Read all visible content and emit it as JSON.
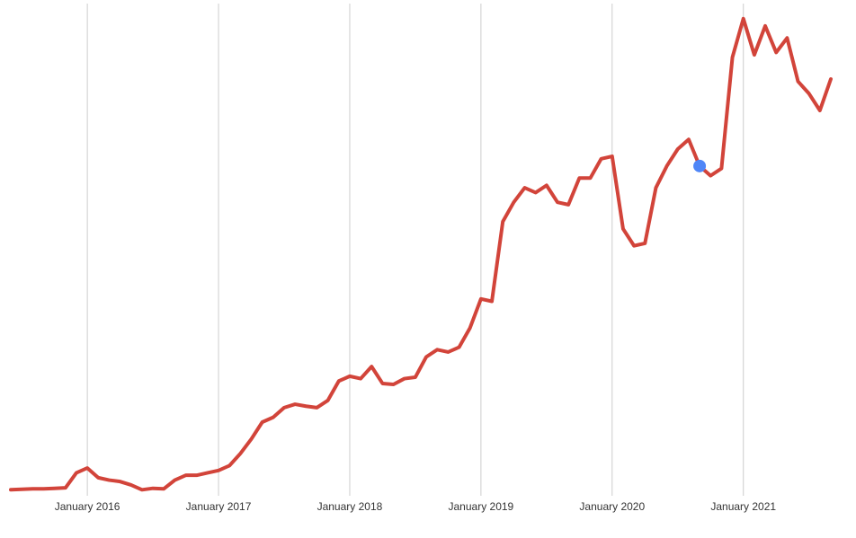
{
  "chart_data": {
    "type": "line",
    "title": "",
    "xlabel": "",
    "ylabel": "",
    "x_ticks": [
      "January 2016",
      "January 2017",
      "January 2018",
      "January 2019",
      "January 2020",
      "January 2021"
    ],
    "x_range": [
      "2015-06",
      "2021-09"
    ],
    "y_range": [
      0,
      100
    ],
    "y_axis_visible": false,
    "grid": "vertical",
    "legend": "none",
    "series": [
      {
        "color": "#d2443a",
        "x": [
          "2015-06",
          "2015-07",
          "2015-08",
          "2015-09",
          "2015-10",
          "2015-11",
          "2015-12",
          "2016-01",
          "2016-02",
          "2016-03",
          "2016-04",
          "2016-05",
          "2016-06",
          "2016-07",
          "2016-08",
          "2016-09",
          "2016-10",
          "2016-11",
          "2016-12",
          "2017-01",
          "2017-02",
          "2017-03",
          "2017-04",
          "2017-05",
          "2017-06",
          "2017-07",
          "2017-08",
          "2017-09",
          "2017-10",
          "2017-11",
          "2017-12",
          "2018-01",
          "2018-02",
          "2018-03",
          "2018-04",
          "2018-05",
          "2018-06",
          "2018-07",
          "2018-08",
          "2018-09",
          "2018-10",
          "2018-11",
          "2018-12",
          "2019-01",
          "2019-02",
          "2019-03",
          "2019-04",
          "2019-05",
          "2019-06",
          "2019-07",
          "2019-08",
          "2019-09",
          "2019-10",
          "2019-11",
          "2019-12",
          "2020-01",
          "2020-02",
          "2020-03",
          "2020-04",
          "2020-05",
          "2020-06",
          "2020-07",
          "2020-08",
          "2020-09",
          "2020-10",
          "2020-11",
          "2020-12",
          "2021-01",
          "2021-02",
          "2021-03",
          "2021-04",
          "2021-05",
          "2021-06",
          "2021-07",
          "2021-08",
          "2021-09"
        ],
        "values": [
          0.5,
          0.6,
          0.7,
          0.7,
          0.8,
          0.9,
          4.0,
          5.0,
          3.0,
          2.5,
          2.2,
          1.5,
          0.5,
          0.8,
          0.7,
          2.5,
          3.5,
          3.5,
          4.0,
          4.5,
          5.5,
          8.0,
          11.0,
          14.5,
          15.5,
          17.5,
          18.2,
          17.8,
          17.5,
          19.0,
          23.0,
          24.0,
          23.5,
          26.0,
          22.5,
          22.3,
          23.5,
          23.8,
          28.0,
          29.5,
          29.0,
          30.0,
          34.0,
          40.0,
          39.5,
          56.0,
          60.0,
          63.0,
          62.0,
          63.5,
          60.0,
          59.5,
          65.0,
          65.0,
          69.0,
          69.5,
          54.5,
          51.0,
          51.5,
          63.0,
          67.5,
          71.0,
          73.0,
          67.5,
          65.5,
          67.0,
          90.0,
          98.0,
          90.5,
          96.5,
          91.0,
          94.0,
          85.0,
          82.5,
          79.0,
          85.5
        ]
      }
    ],
    "highlight_point": {
      "x": "2020-09",
      "value": 67.5,
      "color": "#4f86f7"
    }
  }
}
